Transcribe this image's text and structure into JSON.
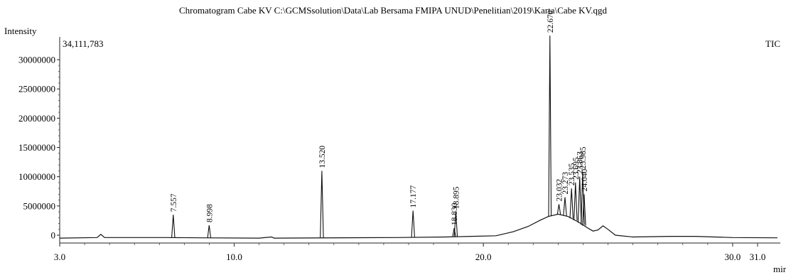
{
  "chart_data": {
    "type": "line",
    "title": "Chromatogram Cabe KV C:\\GCMSsolution\\Data\\Lab Bersama FMIPA UNUD\\Penelitian\\2019\\Karta\\Cabe KV.qgd",
    "ylabel": "Intensity",
    "xlabel": "min",
    "max_intensity_label": "34,111,783",
    "series_label": "TIC",
    "xlim": [
      3.0,
      31.8
    ],
    "ylim": [
      -1000000,
      35000000
    ],
    "x_ticks": [
      {
        "value": 3.0,
        "label": "3.0"
      },
      {
        "value": 10.0,
        "label": "10.0"
      },
      {
        "value": 20.0,
        "label": "20.0"
      },
      {
        "value": 30.0,
        "label": "30.0"
      },
      {
        "value": 31.0,
        "label": "31.0"
      }
    ],
    "y_ticks": [
      {
        "value": 0,
        "label": "0"
      },
      {
        "value": 5000000,
        "label": "5000000"
      },
      {
        "value": 10000000,
        "label": "10000000"
      },
      {
        "value": 15000000,
        "label": "15000000"
      },
      {
        "value": 20000000,
        "label": "20000000"
      },
      {
        "value": 25000000,
        "label": "25000000"
      },
      {
        "value": 30000000,
        "label": "30000000"
      }
    ],
    "peaks": [
      {
        "rt": 7.557,
        "label": "7.557",
        "height": 3500000
      },
      {
        "rt": 8.998,
        "label": "8.998",
        "height": 1700000
      },
      {
        "rt": 13.52,
        "label": "13.520",
        "height": 11000000
      },
      {
        "rt": 17.177,
        "label": "17.177",
        "height": 4200000
      },
      {
        "rt": 18.83,
        "label": "18.830",
        "height": 1200000
      },
      {
        "rt": 18.895,
        "label": "18.895",
        "height": 4000000
      },
      {
        "rt": 22.67,
        "label": "22.670",
        "height": 34111783
      },
      {
        "rt": 23.032,
        "label": "23.032",
        "height": 5300000
      },
      {
        "rt": 23.273,
        "label": "23.273",
        "height": 6500000
      },
      {
        "rt": 23.535,
        "label": "23.535",
        "height": 8000000
      },
      {
        "rt": 23.695,
        "label": "23.695",
        "height": 9000000
      },
      {
        "rt": 23.863,
        "label": "23.863",
        "height": 10000000
      },
      {
        "rt": 23.985,
        "label": "23.985",
        "height": 10800000
      },
      {
        "rt": 24.04,
        "label": "24.040",
        "height": 7000000
      }
    ],
    "baseline": [
      [
        3.0,
        -500000
      ],
      [
        4.5,
        -400000
      ],
      [
        4.65,
        150000
      ],
      [
        4.8,
        -400000
      ],
      [
        7.3,
        -400000
      ],
      [
        8.7,
        -450000
      ],
      [
        11.0,
        -500000
      ],
      [
        11.5,
        -300000
      ],
      [
        11.6,
        -500000
      ],
      [
        16.5,
        -400000
      ],
      [
        18.5,
        -300000
      ],
      [
        19.5,
        -200000
      ],
      [
        20.5,
        -100000
      ],
      [
        21.2,
        600000
      ],
      [
        21.8,
        1500000
      ],
      [
        22.3,
        2600000
      ],
      [
        22.6,
        3200000
      ],
      [
        23.0,
        3600000
      ],
      [
        23.4,
        3200000
      ],
      [
        23.8,
        2300000
      ],
      [
        24.2,
        1200000
      ],
      [
        24.4,
        700000
      ],
      [
        24.6,
        900000
      ],
      [
        24.8,
        1600000
      ],
      [
        25.0,
        1000000
      ],
      [
        25.3,
        0
      ],
      [
        26.0,
        -300000
      ],
      [
        27.5,
        -200000
      ],
      [
        28.5,
        -200000
      ],
      [
        30.0,
        -400000
      ],
      [
        31.8,
        -450000
      ]
    ]
  }
}
